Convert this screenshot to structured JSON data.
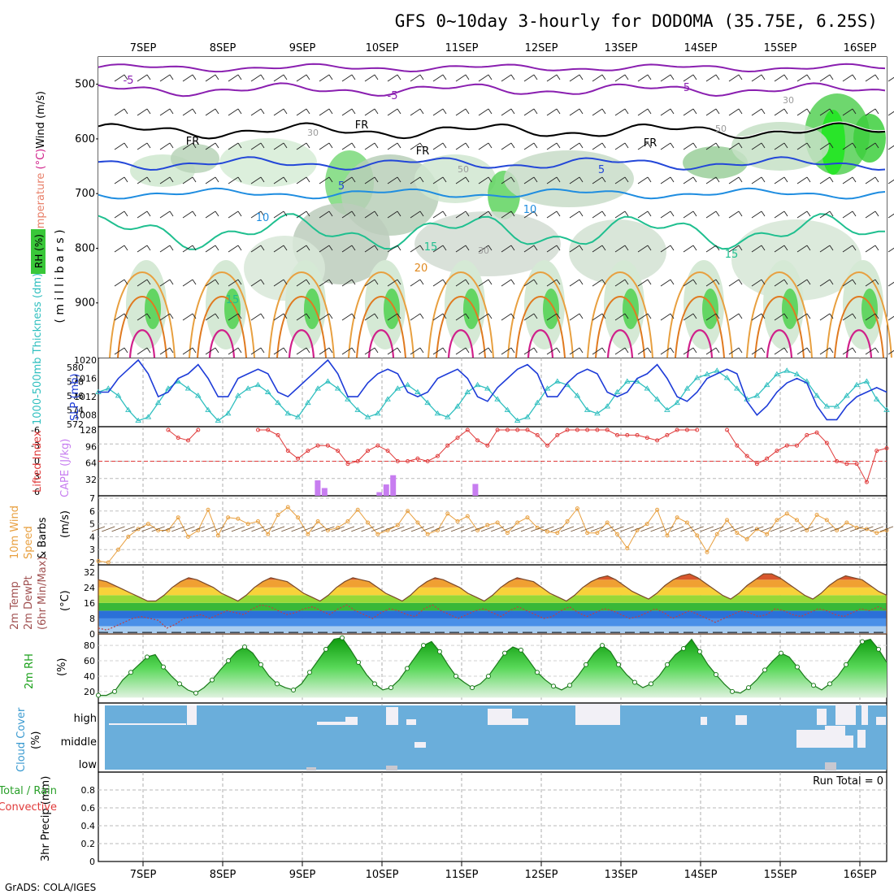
{
  "title": "GFS 0~10day 3-hourly for DODOMA (35.75E, 6.25S)",
  "credit": "GrADS: COLA/IGES",
  "dates": [
    "7SEP",
    "8SEP",
    "9SEP",
    "10SEP",
    "11SEP",
    "12SEP",
    "13SEP",
    "14SEP",
    "15SEP",
    "16SEP"
  ],
  "colors": {
    "rh_green": "#39c739",
    "slp": "#1e3cd8",
    "thickness": "#2fbfbf",
    "lifted": "#e03a3a",
    "cape": "#c77df0",
    "wind": "#e8a040",
    "cloud_bg": "#6aaedb",
    "cloud_fill": "#f2f0f6",
    "frame": "#000000"
  },
  "chart_data": [
    {
      "type": "heatmap",
      "name": "upper-air cross-section",
      "ylabel_parts": [
        "RH (%)",
        "Temperature",
        "(°C)",
        "Wind",
        "(m/s)"
      ],
      "ylabel_units": "( m i l l i b a r s )",
      "yticks": [
        500,
        600,
        700,
        800,
        900
      ],
      "ylim": [
        1000,
        450
      ],
      "temperature_labels": [
        "-5",
        "-5",
        "5",
        "FR",
        "FR",
        "FR",
        "FR",
        "5",
        "5",
        "10",
        "10",
        "15",
        "15",
        "15",
        "20"
      ],
      "rh_labels": [
        "30",
        "30",
        "50",
        "50",
        "30"
      ]
    },
    {
      "type": "line",
      "name": "SLP and thickness",
      "ylabel_left": "1000-500mb Thickness (dm)",
      "ylabel_right": "SLP (mb)",
      "left_ticks": [
        572,
        574,
        576,
        578,
        580
      ],
      "right_ticks": [
        1008,
        1012,
        1016,
        1020
      ],
      "slp_range": [
        1006,
        1020
      ],
      "slp": [
        1013,
        1013,
        1016,
        1018,
        1020,
        1017,
        1012,
        1013,
        1016,
        1017,
        1019,
        1016,
        1012,
        1012,
        1016,
        1017,
        1018,
        1017,
        1013,
        1012,
        1014,
        1016,
        1018,
        1020,
        1017,
        1012,
        1012,
        1015,
        1017,
        1018,
        1017,
        1013,
        1012,
        1013,
        1016,
        1017,
        1018,
        1016,
        1012,
        1011,
        1014,
        1016,
        1018,
        1019,
        1017,
        1012,
        1012,
        1015,
        1017,
        1018,
        1017,
        1013,
        1012,
        1013,
        1016,
        1017,
        1019,
        1016,
        1012,
        1011,
        1013,
        1016,
        1017,
        1018,
        1017,
        1011,
        1008,
        1010,
        1013,
        1015,
        1016,
        1015,
        1010,
        1007,
        1007,
        1010,
        1012,
        1013,
        1014,
        1013
      ],
      "thickness_range": [
        572,
        581
      ],
      "thickness": [
        576.5,
        577,
        576,
        574,
        572.5,
        573,
        575,
        577,
        578,
        577,
        576,
        574,
        572.5,
        573.5,
        576,
        577,
        577.5,
        576.5,
        575,
        573.5,
        573,
        575,
        577,
        578,
        577,
        575.5,
        574,
        573,
        573.5,
        575.5,
        577,
        577.5,
        576.5,
        575,
        573.5,
        573,
        574.5,
        576.5,
        577.5,
        577,
        575.5,
        574,
        572.5,
        573,
        575,
        577,
        578,
        577.5,
        576,
        574,
        573.5,
        574.5,
        576.5,
        578,
        578,
        577,
        575.5,
        574,
        575,
        577,
        578.5,
        579,
        579.5,
        578.5,
        577,
        575.5,
        576,
        577.5,
        579,
        579.5,
        579,
        578,
        576,
        574.5,
        574.5,
        576,
        577.5,
        578,
        575.5,
        574
      ]
    },
    {
      "type": "bar",
      "name": "Lifted Index and CAPE",
      "ylabel_left": "Lifted Index",
      "ylabel_right": "CAPE (J/kg)",
      "left_ticks": [
        "-6",
        "-3",
        "0",
        "3",
        "6"
      ],
      "right_ticks": [
        32,
        64,
        96,
        128
      ],
      "cape_range": [
        0,
        128
      ],
      "lifted_range": [
        6,
        -6
      ],
      "lifted_index": [
        null,
        null,
        null,
        null,
        null,
        null,
        null,
        6,
        4.5,
        4,
        6,
        null,
        null,
        null,
        null,
        null,
        6,
        6,
        5,
        2,
        0.5,
        2,
        3,
        3,
        2,
        -0.5,
        0,
        2,
        3,
        2,
        0,
        0,
        0.5,
        0,
        1,
        3,
        4.5,
        6,
        4,
        3,
        6,
        6,
        6,
        6,
        5,
        3,
        5,
        6,
        6,
        6,
        6,
        6,
        5,
        5,
        5,
        4.5,
        4,
        5,
        6,
        6,
        6,
        null,
        null,
        6,
        3,
        1,
        -0.5,
        0.5,
        2,
        3,
        3,
        5,
        5.5,
        3.5,
        0,
        -0.5,
        -0.5,
        -4,
        2,
        2.5
      ],
      "cape": [
        0,
        0,
        0,
        0,
        0,
        0,
        0,
        0,
        0,
        0,
        0,
        0,
        0,
        0,
        0,
        0,
        0,
        0,
        0,
        0,
        0,
        0,
        0,
        0,
        0,
        0,
        0,
        0,
        0,
        0,
        0,
        0,
        30,
        15,
        0,
        0,
        0,
        0,
        0,
        0,
        0,
        7,
        22,
        40,
        0,
        0,
        0,
        0,
        0,
        0,
        0,
        0,
        0,
        0,
        0,
        23,
        0,
        0,
        0,
        0,
        0,
        0,
        0,
        0,
        0,
        0,
        0,
        0,
        0,
        0,
        0,
        0,
        0,
        0,
        0,
        0,
        0,
        0,
        0,
        0,
        0,
        0,
        0,
        0,
        0,
        0,
        0,
        0,
        0,
        0,
        0,
        0,
        0,
        0,
        0,
        0,
        0,
        0,
        0,
        0,
        0,
        0,
        0,
        0,
        0,
        0,
        0,
        0,
        0,
        0,
        0,
        0,
        0,
        0,
        0,
        0
      ]
    },
    {
      "type": "line",
      "name": "10m wind",
      "ylabel_lines": [
        "10m Wind",
        "Speed",
        "& Barbs"
      ],
      "ylabel_right": "(m/s)",
      "yticks": [
        2,
        3,
        4,
        5,
        6,
        7
      ],
      "ylim": [
        2,
        7
      ],
      "wind_speed": [
        2.1,
        2,
        3,
        4,
        4.6,
        5,
        4.5,
        4.5,
        5.5,
        4,
        4.5,
        6.1,
        4.1,
        5.5,
        5.4,
        5,
        5.2,
        4.2,
        5.7,
        6.3,
        5.5,
        4.2,
        5.2,
        4.5,
        4.7,
        5.2,
        6.1,
        5.1,
        4.2,
        4.5,
        4.9,
        6,
        5.1,
        4.2,
        4.5,
        5.8,
        5.2,
        5.6,
        4.5,
        4.9,
        5.1,
        4.3,
        5.1,
        5.5,
        4.7,
        4.4,
        4.3,
        5.2,
        6.2,
        4.3,
        4.3,
        5.1,
        4.2,
        3.1,
        4.5,
        5,
        6.1,
        4.1,
        5.5,
        5.1,
        4.1,
        2.8,
        4.2,
        5.3,
        4.3,
        3.8,
        4.6,
        4.2,
        5.3,
        5.8,
        5.3,
        4.5,
        5.7,
        5.3,
        4.5,
        5.1,
        4.7,
        4.6,
        4.3,
        4.5
      ]
    },
    {
      "type": "area",
      "name": "2m temperature",
      "ylabel_lines": [
        "2m Temp",
        "2m DewPt",
        "(6hr Min/Max)"
      ],
      "ylabel_right": "(°C)",
      "yticks": [
        0,
        8,
        16,
        24,
        32
      ],
      "ylim": [
        0,
        34
      ],
      "temp": [
        28,
        27,
        25,
        23,
        21,
        19,
        17,
        17,
        20,
        24,
        27,
        29,
        28,
        26,
        24,
        21,
        19,
        17,
        20,
        24,
        27,
        29,
        28,
        27,
        24,
        21,
        19,
        17,
        20,
        24,
        27,
        29,
        28,
        27,
        24,
        21,
        19,
        17,
        20,
        24,
        27,
        29,
        28,
        26,
        24,
        21,
        19,
        17,
        20,
        24,
        27,
        29,
        28,
        27,
        24,
        21,
        19,
        17,
        20,
        24,
        27,
        29,
        30,
        28,
        25,
        22,
        20,
        18,
        21,
        25,
        28,
        30,
        31,
        29,
        26,
        23,
        20,
        18,
        21,
        25,
        28,
        31,
        31,
        29,
        26,
        23,
        20,
        18,
        21,
        25,
        28,
        30,
        29,
        28,
        25,
        22,
        20
      ],
      "dewpoint": [
        3,
        2,
        4,
        6,
        8,
        9,
        8,
        7,
        3,
        5,
        8,
        9,
        10,
        8,
        10,
        12,
        11,
        10,
        13,
        15,
        14,
        12,
        10,
        11,
        13,
        14,
        12,
        10,
        13,
        15,
        12,
        10,
        8,
        11,
        13,
        12,
        10,
        9,
        13,
        15,
        12,
        10,
        8,
        10,
        12,
        13,
        11,
        9,
        12,
        14,
        12,
        10,
        8,
        9,
        12,
        14,
        11,
        9,
        11,
        13,
        12,
        10,
        8,
        9,
        11,
        13,
        11,
        8,
        10,
        12,
        10,
        8,
        6,
        8,
        10,
        12,
        11,
        9,
        10,
        13,
        12,
        10,
        9,
        11,
        13,
        12,
        10,
        9,
        11,
        13,
        12,
        14,
        12
      ]
    },
    {
      "type": "area",
      "name": "2m relative humidity",
      "ylabel": "2m RH",
      "ylabel_right": "(%)",
      "yticks": [
        20,
        40,
        60,
        80
      ],
      "ylim": [
        5,
        95
      ],
      "rh": [
        15,
        15,
        20,
        35,
        45,
        55,
        65,
        68,
        52,
        40,
        30,
        22,
        18,
        25,
        35,
        48,
        60,
        72,
        78,
        70,
        55,
        40,
        30,
        25,
        22,
        30,
        45,
        60,
        75,
        88,
        90,
        75,
        58,
        42,
        30,
        22,
        25,
        35,
        50,
        65,
        80,
        85,
        72,
        55,
        40,
        32,
        25,
        30,
        40,
        55,
        70,
        78,
        74,
        60,
        45,
        35,
        27,
        22,
        28,
        40,
        55,
        70,
        80,
        72,
        55,
        42,
        32,
        25,
        30,
        40,
        55,
        68,
        76,
        88,
        72,
        55,
        42,
        30,
        20,
        18,
        25,
        35,
        48,
        60,
        70,
        65,
        52,
        38,
        28,
        22,
        30,
        40,
        55,
        70,
        85,
        88,
        75,
        58
      ]
    },
    {
      "type": "bar",
      "name": "cloud cover",
      "ylabel": "Cloud Cover",
      "ylabel_right": "(%)",
      "levels": [
        "high",
        "middle",
        "low"
      ]
    },
    {
      "type": "bar",
      "name": "3hr precipitation",
      "ylabel": "3hr Precip (mm)",
      "legend_left": [
        "Total / Rain",
        "Convective"
      ],
      "run_total": "Run Total = 0",
      "yticks": [
        "0",
        "0.2",
        "0.4",
        "0.6",
        "0.8"
      ],
      "ylim": [
        0,
        1
      ],
      "precip": []
    }
  ]
}
